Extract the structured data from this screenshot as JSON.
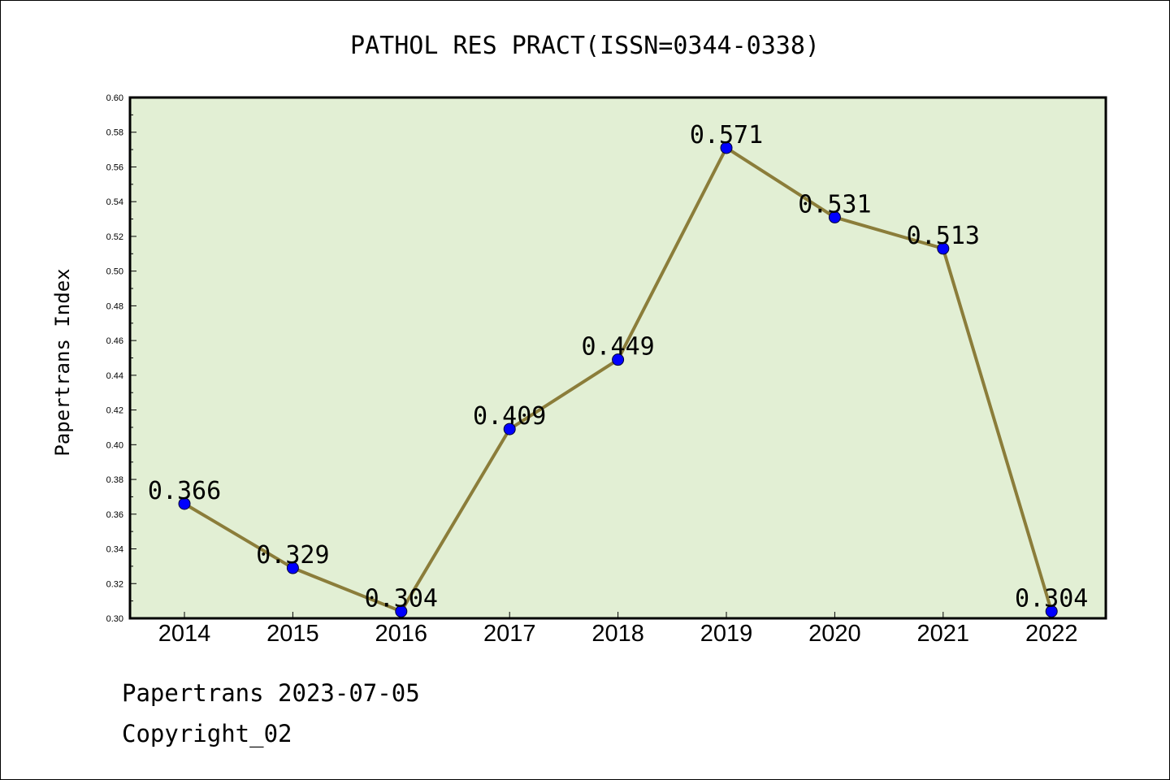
{
  "chart_data": {
    "type": "line",
    "title": "PATHOL RES PRACT(ISSN=0344-0338)",
    "xlabel": "",
    "ylabel": "Papertrans Index",
    "categories": [
      "2014",
      "2015",
      "2016",
      "2017",
      "2018",
      "2019",
      "2020",
      "2021",
      "2022"
    ],
    "series": [
      {
        "values": [
          0.366,
          0.329,
          0.304,
          0.409,
          0.449,
          0.571,
          0.531,
          0.513,
          0.304
        ],
        "data_labels": [
          "0.366",
          "0.329",
          "0.304",
          "0.409",
          "0.449",
          "0.571",
          "0.531",
          "0.513",
          "0.304"
        ],
        "line_color": "#8b7d3a",
        "marker_color": "#0000ff"
      }
    ],
    "ylim": [
      0.3,
      0.6
    ],
    "yticks": [
      "0.30",
      "0.32",
      "0.34",
      "0.36",
      "0.38",
      "0.40",
      "0.42",
      "0.44",
      "0.46",
      "0.48",
      "0.50",
      "0.52",
      "0.54",
      "0.56",
      "0.58",
      "0.60"
    ],
    "plot_background": "#e2efd4",
    "grid": false,
    "legend": "none"
  },
  "footer": {
    "source_line": "Papertrans 2023-07-05",
    "copyright_line": "Copyright_02"
  }
}
